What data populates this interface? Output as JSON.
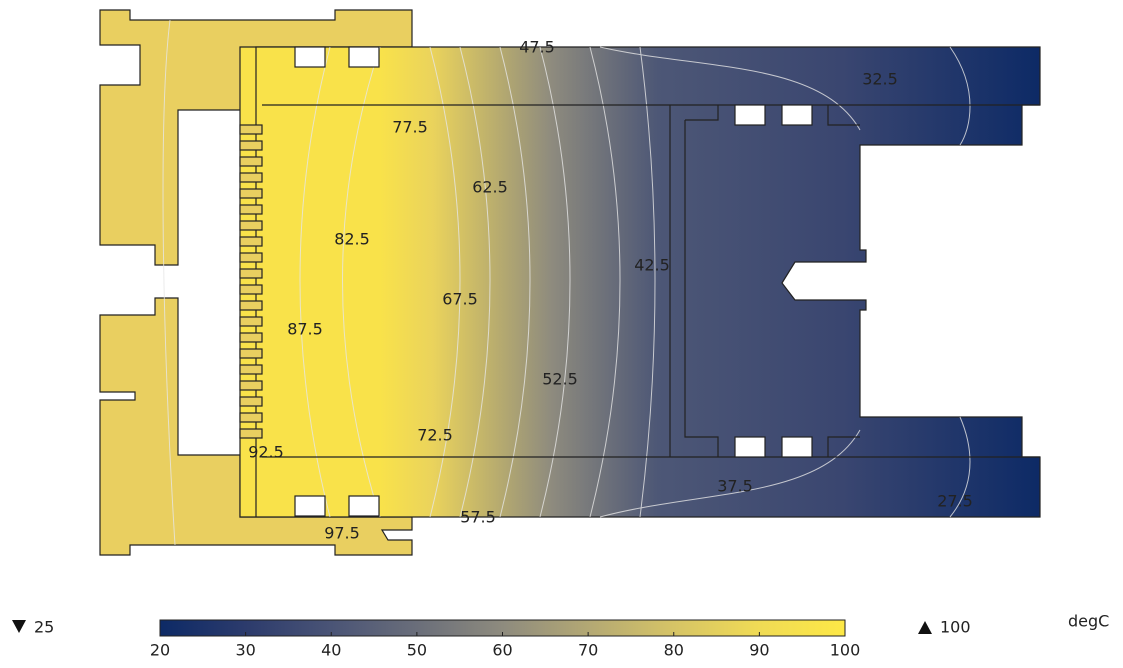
{
  "contour_labels": [
    47.5,
    32.5,
    77.5,
    62.5,
    82.5,
    42.5,
    67.5,
    87.5,
    52.5,
    72.5,
    92.5,
    37.5,
    27.5,
    57.5,
    97.5
  ],
  "colorbar": {
    "lim": [
      20,
      100
    ],
    "ticks": [
      20,
      30,
      40,
      50,
      60,
      70,
      80,
      90,
      100
    ],
    "colors": [
      "#0d2a66",
      "#2c3b6c",
      "#4a5476",
      "#6a6e7a",
      "#8e8b7e",
      "#b3a874",
      "#d6c466",
      "#f0db55",
      "#fde846"
    ]
  },
  "min": 25,
  "max": 100,
  "unit": "degC"
}
